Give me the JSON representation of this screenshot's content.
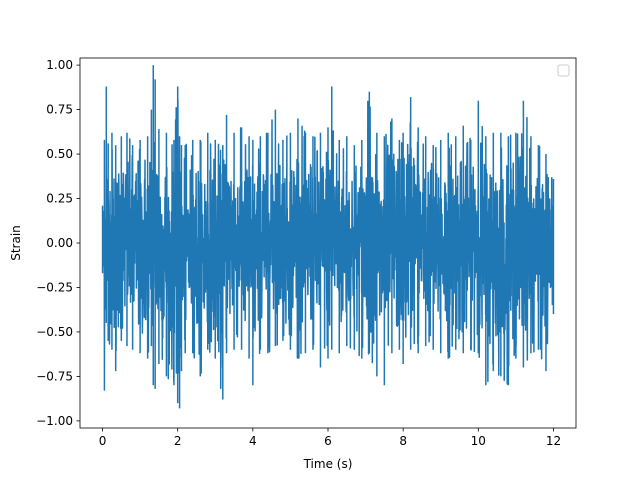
{
  "chart_data": {
    "type": "line",
    "title": "",
    "xlabel": "Time (s)",
    "ylabel": "Strain",
    "xlim": [
      -0.6,
      12.6
    ],
    "ylim": [
      -1.04,
      1.04
    ],
    "xticks": [
      0,
      2,
      4,
      6,
      8,
      10,
      12
    ],
    "xtick_labels": [
      "0",
      "2",
      "4",
      "6",
      "8",
      "10",
      "12"
    ],
    "yticks": [
      1.0,
      0.75,
      0.5,
      0.25,
      0.0,
      -0.25,
      -0.5,
      -0.75,
      -1.0
    ],
    "ytick_labels": [
      "1.00",
      "0.75",
      "0.50",
      "0.25",
      "0.00",
      "−0.25",
      "−0.50",
      "−0.75",
      "−1.00"
    ],
    "grid": false,
    "legend": "top-right",
    "series": [
      {
        "color": "#1f77b4",
        "x_range": [
          0,
          12
        ],
        "y_range": [
          -0.93,
          1.0
        ],
        "x": [
          0.0,
          0.05,
          0.1,
          0.15,
          0.25,
          0.35,
          0.5,
          0.65,
          0.8,
          1.0,
          1.2,
          1.3,
          1.35,
          1.4,
          1.5,
          1.7,
          1.9,
          2.0,
          2.05,
          2.1,
          2.2,
          2.4,
          2.6,
          2.8,
          3.0,
          3.2,
          3.3,
          3.5,
          3.7,
          3.9,
          4.0,
          4.2,
          4.4,
          4.6,
          4.8,
          5.0,
          5.2,
          5.4,
          5.6,
          5.8,
          6.0,
          6.1,
          6.3,
          6.5,
          6.7,
          6.9,
          7.1,
          7.3,
          7.5,
          7.7,
          7.9,
          8.0,
          8.2,
          8.4,
          8.6,
          8.8,
          9.0,
          9.2,
          9.4,
          9.6,
          9.8,
          10.0,
          10.2,
          10.4,
          10.6,
          10.8,
          11.0,
          11.2,
          11.4,
          11.6,
          11.8,
          12.0
        ],
        "upper": [
          0.21,
          0.58,
          0.88,
          0.56,
          0.62,
          0.55,
          0.6,
          0.62,
          0.55,
          0.58,
          0.6,
          0.75,
          1.0,
          0.92,
          0.64,
          0.62,
          0.58,
          0.88,
          0.6,
          0.55,
          0.55,
          0.58,
          0.58,
          0.62,
          0.58,
          0.55,
          0.72,
          0.62,
          0.65,
          0.6,
          0.58,
          0.6,
          0.62,
          0.75,
          0.58,
          0.62,
          0.7,
          0.62,
          0.6,
          0.62,
          0.65,
          0.88,
          0.58,
          0.6,
          0.55,
          0.58,
          0.85,
          0.62,
          0.6,
          0.7,
          0.58,
          0.62,
          0.82,
          0.65,
          0.6,
          0.55,
          0.58,
          0.62,
          0.6,
          0.66,
          0.58,
          0.8,
          0.6,
          0.62,
          0.62,
          0.6,
          0.62,
          0.8,
          0.6,
          0.55,
          0.5,
          0.36
        ],
        "lower": [
          -0.17,
          -0.83,
          -0.45,
          -0.55,
          -0.6,
          -0.72,
          -0.55,
          -0.58,
          -0.6,
          -0.62,
          -0.65,
          -0.58,
          -0.8,
          -0.82,
          -0.68,
          -0.75,
          -0.8,
          -0.9,
          -0.93,
          -0.72,
          -0.62,
          -0.62,
          -0.75,
          -0.6,
          -0.65,
          -0.88,
          -0.62,
          -0.6,
          -0.6,
          -0.65,
          -0.8,
          -0.6,
          -0.62,
          -0.58,
          -0.55,
          -0.6,
          -0.65,
          -0.62,
          -0.6,
          -0.7,
          -0.65,
          -0.6,
          -0.62,
          -0.58,
          -0.6,
          -0.65,
          -0.62,
          -0.75,
          -0.8,
          -0.62,
          -0.6,
          -0.68,
          -0.6,
          -0.62,
          -0.58,
          -0.6,
          -0.62,
          -0.65,
          -0.6,
          -0.62,
          -0.6,
          -0.62,
          -0.8,
          -0.72,
          -0.75,
          -0.8,
          -0.65,
          -0.7,
          -0.62,
          -0.6,
          -0.72,
          -0.4
        ]
      }
    ]
  }
}
